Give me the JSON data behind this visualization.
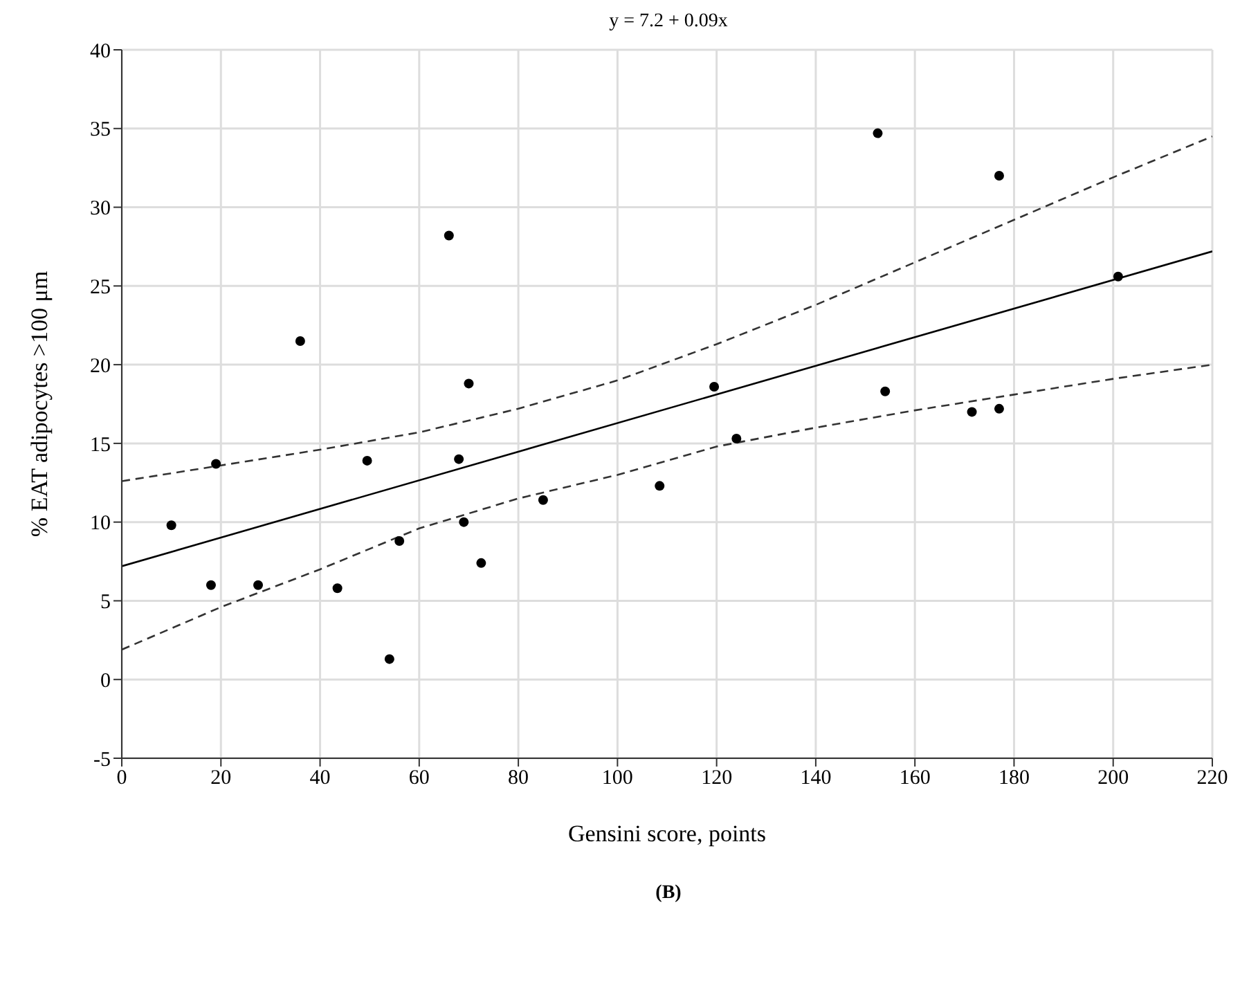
{
  "chart_data": {
    "type": "scatter",
    "title": "y = 7.2 + 0.09x",
    "xlabel": "Gensini score, points",
    "ylabel": "% EAT adipocytes >100 μm",
    "annotations": [
      "(B)"
    ],
    "xlim": [
      0,
      220
    ],
    "xticks": [
      0,
      20,
      40,
      60,
      80,
      100,
      120,
      140,
      160,
      180,
      200,
      220
    ],
    "ylim": [
      -5,
      40
    ],
    "yticks": [
      -5,
      0,
      5,
      10,
      15,
      20,
      25,
      30,
      35,
      40
    ],
    "grid": true,
    "legend": false,
    "series": [
      {
        "color": "#000000",
        "marker": "circle",
        "x": [
          10,
          18,
          19,
          27.5,
          36,
          43.5,
          49.5,
          54,
          56,
          66,
          68,
          69,
          70,
          72.5,
          85,
          108.5,
          119.5,
          124,
          152.5,
          154,
          171.5,
          177,
          177,
          201
        ],
        "values": [
          9.8,
          6,
          13.7,
          6,
          21.5,
          5.8,
          13.9,
          1.3,
          8.8,
          28.2,
          14,
          10,
          18.8,
          7.4,
          11.4,
          12.3,
          18.6,
          15.3,
          34.7,
          18.3,
          17,
          32,
          17.2,
          25.6
        ]
      },
      {
        "type": "line",
        "color": "#000000",
        "line_style": "solid",
        "marker": "none",
        "x": [
          0,
          220
        ],
        "values": [
          7.2,
          27.2
        ]
      },
      {
        "type": "line",
        "color": "#333333",
        "line_style": "dashed",
        "marker": "none",
        "x": [
          0,
          20,
          40,
          60,
          80,
          100,
          120,
          140,
          160,
          180,
          200,
          220
        ],
        "values": [
          12.6,
          13.6,
          14.6,
          15.7,
          17.2,
          19.0,
          21.3,
          23.8,
          26.5,
          29.2,
          31.9,
          34.5
        ]
      },
      {
        "type": "line",
        "color": "#333333",
        "line_style": "dashed",
        "marker": "none",
        "x": [
          0,
          20,
          40,
          60,
          80,
          100,
          120,
          140,
          160,
          180,
          200,
          220
        ],
        "values": [
          1.9,
          4.6,
          7.0,
          9.6,
          11.5,
          13.0,
          14.8,
          16.0,
          17.1,
          18.1,
          19.1,
          20.0
        ]
      }
    ]
  }
}
